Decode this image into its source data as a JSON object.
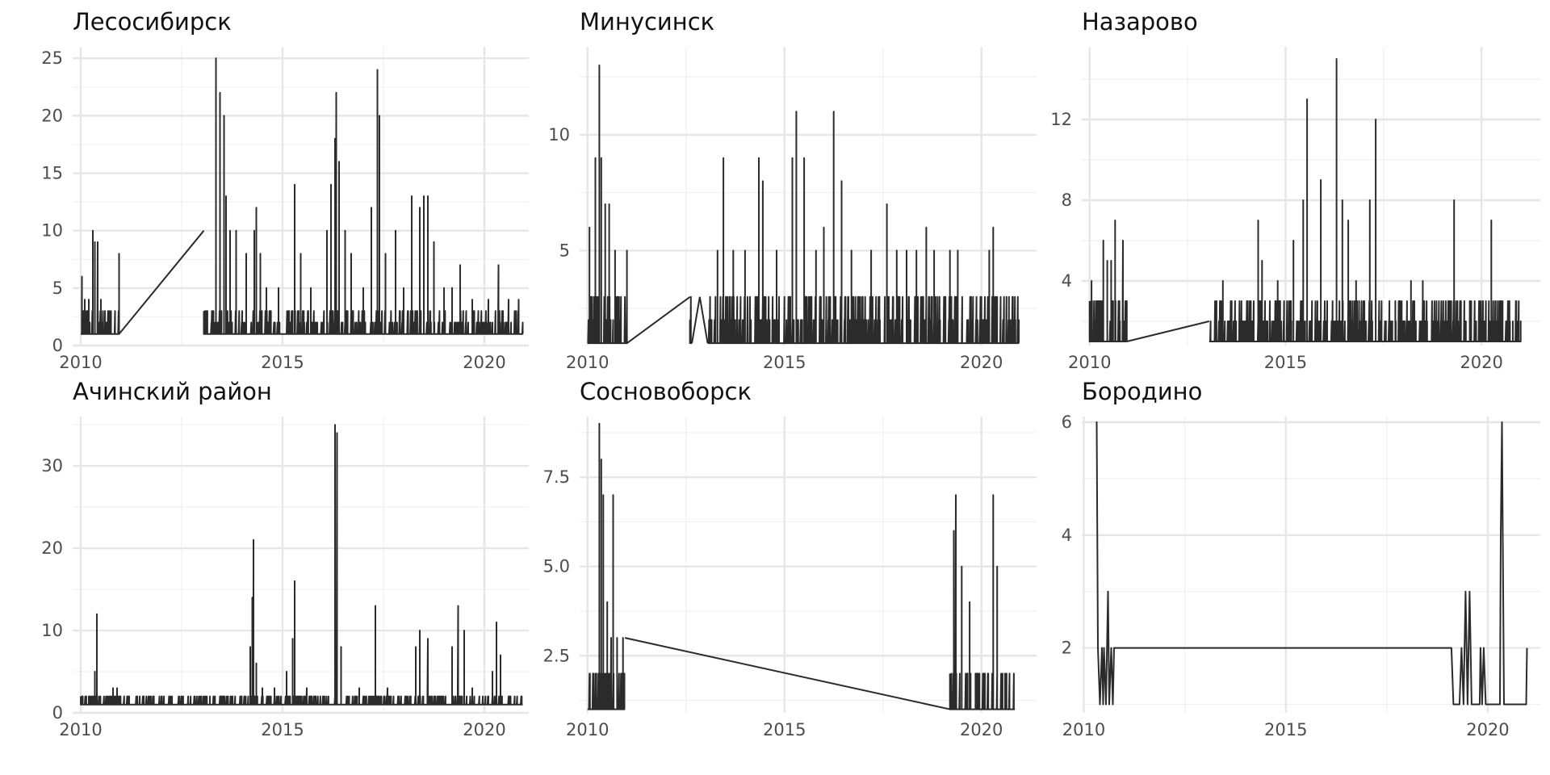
{
  "chart_data": [
    {
      "type": "line",
      "title": "Лесосибирск",
      "xlim": [
        2009.8,
        2021.1
      ],
      "ylim": [
        0,
        26
      ],
      "xticks": [
        2010,
        2015,
        2020
      ],
      "xtick_labels": [
        "2010",
        "2015",
        "2020"
      ],
      "yticks": [
        0,
        5,
        10,
        15,
        20,
        25
      ],
      "ytick_labels": [
        "0",
        "5",
        "10",
        "15",
        "20",
        "25"
      ],
      "grid": true,
      "series": [
        {
          "style": "spiky",
          "baseline": 1,
          "segments": [
            [
              2010.0,
              2010.95
            ],
            [
              2013.05,
              2020.95
            ]
          ],
          "gap_lines": [
            [
              2010.95,
              1,
              2013.05,
              10
            ]
          ],
          "spikes": [
            [
              2010.03,
              6
            ],
            [
              2010.1,
              4
            ],
            [
              2010.2,
              4
            ],
            [
              2010.3,
              10
            ],
            [
              2010.35,
              9
            ],
            [
              2010.42,
              9
            ],
            [
              2010.5,
              4
            ],
            [
              2010.6,
              3
            ],
            [
              2010.75,
              3
            ],
            [
              2010.95,
              8
            ],
            [
              2013.35,
              25
            ],
            [
              2013.45,
              22
            ],
            [
              2013.55,
              20
            ],
            [
              2013.6,
              13
            ],
            [
              2013.7,
              10
            ],
            [
              2013.85,
              10
            ],
            [
              2014.1,
              8
            ],
            [
              2014.3,
              10
            ],
            [
              2014.35,
              12
            ],
            [
              2014.45,
              8
            ],
            [
              2014.6,
              5
            ],
            [
              2014.9,
              5
            ],
            [
              2015.3,
              14
            ],
            [
              2015.45,
              8
            ],
            [
              2015.7,
              5
            ],
            [
              2016.1,
              10
            ],
            [
              2016.2,
              14
            ],
            [
              2016.3,
              18
            ],
            [
              2016.33,
              22
            ],
            [
              2016.4,
              16
            ],
            [
              2016.55,
              10
            ],
            [
              2016.7,
              8
            ],
            [
              2017.0,
              5
            ],
            [
              2017.2,
              12
            ],
            [
              2017.35,
              24
            ],
            [
              2017.4,
              20
            ],
            [
              2017.55,
              8
            ],
            [
              2017.8,
              10
            ],
            [
              2018.0,
              5
            ],
            [
              2018.2,
              13
            ],
            [
              2018.4,
              12
            ],
            [
              2018.5,
              13
            ],
            [
              2018.6,
              13
            ],
            [
              2018.75,
              9
            ],
            [
              2019.0,
              5
            ],
            [
              2019.2,
              5
            ],
            [
              2019.4,
              7
            ],
            [
              2019.7,
              4
            ],
            [
              2020.1,
              4
            ],
            [
              2020.35,
              7
            ],
            [
              2020.6,
              4
            ],
            [
              2020.85,
              4
            ]
          ],
          "noise_max": 3
        }
      ]
    },
    {
      "type": "line",
      "title": "Минусинск",
      "xlim": [
        2009.8,
        2021.4
      ],
      "ylim": [
        0.9,
        13.8
      ],
      "xticks": [
        2010,
        2015,
        2020
      ],
      "xtick_labels": [
        "2010",
        "2015",
        "2020"
      ],
      "yticks": [
        5,
        10
      ],
      "ytick_labels": [
        "5",
        "10"
      ],
      "grid": true,
      "series": [
        {
          "style": "spiky",
          "baseline": 1,
          "segments": [
            [
              2010.0,
              2011.0
            ],
            [
              2012.6,
              2012.65
            ],
            [
              2013.05,
              2020.95
            ]
          ],
          "gap_lines": [
            [
              2011.0,
              1,
              2012.6,
              3
            ],
            [
              2012.65,
              1,
              2012.85,
              3
            ],
            [
              2012.85,
              3,
              2013.05,
              1
            ]
          ],
          "spikes": [
            [
              2010.05,
              6
            ],
            [
              2010.2,
              9
            ],
            [
              2010.3,
              13
            ],
            [
              2010.35,
              9
            ],
            [
              2010.45,
              7
            ],
            [
              2010.55,
              7
            ],
            [
              2010.7,
              5
            ],
            [
              2011.0,
              5
            ],
            [
              2013.3,
              5
            ],
            [
              2013.45,
              9
            ],
            [
              2013.7,
              5
            ],
            [
              2014.0,
              5
            ],
            [
              2014.35,
              9
            ],
            [
              2014.45,
              8
            ],
            [
              2014.8,
              5
            ],
            [
              2015.2,
              9
            ],
            [
              2015.3,
              11
            ],
            [
              2015.5,
              9
            ],
            [
              2015.8,
              5
            ],
            [
              2016.0,
              6
            ],
            [
              2016.25,
              11
            ],
            [
              2016.45,
              8
            ],
            [
              2016.7,
              5
            ],
            [
              2017.2,
              5
            ],
            [
              2017.6,
              7
            ],
            [
              2017.85,
              5
            ],
            [
              2018.1,
              5
            ],
            [
              2018.35,
              5
            ],
            [
              2018.6,
              6
            ],
            [
              2018.8,
              5
            ],
            [
              2019.2,
              5
            ],
            [
              2019.4,
              5
            ],
            [
              2020.0,
              3
            ],
            [
              2020.2,
              5
            ],
            [
              2020.3,
              6
            ],
            [
              2020.7,
              3
            ]
          ],
          "noise_max": 3
        }
      ]
    },
    {
      "type": "line",
      "title": "Назарово",
      "xlim": [
        2009.8,
        2021.5
      ],
      "ylim": [
        0.8,
        15.6
      ],
      "xticks": [
        2010,
        2015,
        2020
      ],
      "xtick_labels": [
        "2010",
        "2015",
        "2020"
      ],
      "yticks": [
        4,
        8,
        12
      ],
      "ytick_labels": [
        "4",
        "8",
        "12"
      ],
      "grid": true,
      "series": [
        {
          "style": "spiky",
          "baseline": 1,
          "segments": [
            [
              2010.0,
              2010.95
            ],
            [
              2013.05,
              2021.0
            ]
          ],
          "gap_lines": [
            [
              2010.95,
              1,
              2013.05,
              2
            ]
          ],
          "spikes": [
            [
              2010.05,
              4
            ],
            [
              2010.2,
              3
            ],
            [
              2010.35,
              6
            ],
            [
              2010.45,
              5
            ],
            [
              2010.55,
              5
            ],
            [
              2010.65,
              7
            ],
            [
              2010.85,
              6
            ],
            [
              2013.4,
              4
            ],
            [
              2014.3,
              7
            ],
            [
              2014.4,
              5
            ],
            [
              2014.8,
              4
            ],
            [
              2015.2,
              6
            ],
            [
              2015.45,
              8
            ],
            [
              2015.55,
              13
            ],
            [
              2015.9,
              9
            ],
            [
              2016.3,
              15
            ],
            [
              2016.45,
              8
            ],
            [
              2016.6,
              7
            ],
            [
              2016.8,
              4
            ],
            [
              2017.15,
              8
            ],
            [
              2017.3,
              12
            ],
            [
              2017.8,
              3
            ],
            [
              2018.2,
              4
            ],
            [
              2018.5,
              4
            ],
            [
              2018.8,
              3
            ],
            [
              2019.3,
              8
            ],
            [
              2019.7,
              3
            ],
            [
              2020.25,
              7
            ],
            [
              2020.4,
              3
            ],
            [
              2020.8,
              2
            ],
            [
              2021.0,
              2
            ]
          ],
          "noise_max": 3
        }
      ]
    },
    {
      "type": "line",
      "title": "Ачинский район",
      "xlim": [
        2009.8,
        2021.1
      ],
      "ylim": [
        0,
        36
      ],
      "xticks": [
        2010,
        2015,
        2020
      ],
      "xtick_labels": [
        "2010",
        "2015",
        "2020"
      ],
      "yticks": [
        0,
        10,
        20,
        30
      ],
      "ytick_labels": [
        "0",
        "10",
        "20",
        "30"
      ],
      "grid": true,
      "series": [
        {
          "style": "spiky",
          "baseline": 1,
          "segments": [
            [
              2010.0,
              2020.95
            ]
          ],
          "gap_lines": [],
          "spikes": [
            [
              2010.05,
              2
            ],
            [
              2010.2,
              2
            ],
            [
              2010.35,
              5
            ],
            [
              2010.4,
              12
            ],
            [
              2010.7,
              2
            ],
            [
              2010.8,
              3
            ],
            [
              2010.9,
              3
            ],
            [
              2013.2,
              2
            ],
            [
              2013.5,
              2
            ],
            [
              2014.2,
              8
            ],
            [
              2014.25,
              14
            ],
            [
              2014.28,
              21
            ],
            [
              2014.35,
              6
            ],
            [
              2014.5,
              3
            ],
            [
              2014.8,
              3
            ],
            [
              2015.1,
              5
            ],
            [
              2015.25,
              9
            ],
            [
              2015.3,
              16
            ],
            [
              2015.6,
              3
            ],
            [
              2016.3,
              35
            ],
            [
              2016.35,
              34
            ],
            [
              2016.45,
              8
            ],
            [
              2016.9,
              3
            ],
            [
              2017.3,
              13
            ],
            [
              2017.6,
              3
            ],
            [
              2018.3,
              8
            ],
            [
              2018.4,
              10
            ],
            [
              2018.6,
              9
            ],
            [
              2019.2,
              8
            ],
            [
              2019.35,
              13
            ],
            [
              2019.5,
              10
            ],
            [
              2019.7,
              3
            ],
            [
              2020.2,
              5
            ],
            [
              2020.3,
              11
            ],
            [
              2020.4,
              7
            ]
          ],
          "noise_max": 2
        }
      ]
    },
    {
      "type": "line",
      "title": "Сосновоборск",
      "xlim": [
        2009.8,
        2021.4
      ],
      "ylim": [
        0.9,
        9.2
      ],
      "xticks": [
        2010,
        2015,
        2020
      ],
      "xtick_labels": [
        "2010",
        "2015",
        "2020"
      ],
      "yticks": [
        2.5,
        5.0,
        7.5
      ],
      "ytick_labels": [
        "2.5",
        "5.0",
        "7.5"
      ],
      "grid": true,
      "series": [
        {
          "style": "spiky",
          "baseline": 1,
          "segments": [
            [
              2010.0,
              2010.95
            ],
            [
              2019.2,
              2020.85
            ]
          ],
          "gap_lines": [
            [
              2010.95,
              3,
              2019.2,
              1
            ]
          ],
          "spikes": [
            [
              2010.05,
              2
            ],
            [
              2010.15,
              2
            ],
            [
              2010.3,
              9
            ],
            [
              2010.35,
              8
            ],
            [
              2010.4,
              7
            ],
            [
              2010.5,
              4
            ],
            [
              2010.6,
              3
            ],
            [
              2010.65,
              7
            ],
            [
              2010.75,
              3
            ],
            [
              2010.9,
              3
            ],
            [
              2019.3,
              6
            ],
            [
              2019.35,
              7
            ],
            [
              2019.5,
              5
            ],
            [
              2019.7,
              4
            ],
            [
              2019.85,
              2
            ],
            [
              2020.3,
              7
            ],
            [
              2020.4,
              5
            ],
            [
              2020.6,
              2
            ]
          ],
          "noise_max": 2
        }
      ]
    },
    {
      "type": "line",
      "title": "Бородино",
      "xlim": [
        2009.95,
        2021.3
      ],
      "ylim": [
        0.85,
        6.1
      ],
      "xticks": [
        2010,
        2015,
        2020
      ],
      "xtick_labels": [
        "2010",
        "2015",
        "2020"
      ],
      "yticks": [
        2,
        4,
        6
      ],
      "ytick_labels": [
        "2",
        "4",
        "6"
      ],
      "grid": true,
      "series": [
        {
          "style": "steps",
          "points": [
            [
              2010.3,
              6
            ],
            [
              2010.32,
              6
            ],
            [
              2010.35,
              2
            ],
            [
              2010.4,
              1
            ],
            [
              2010.45,
              2
            ],
            [
              2010.48,
              1
            ],
            [
              2010.5,
              2
            ],
            [
              2010.55,
              1
            ],
            [
              2010.6,
              3
            ],
            [
              2010.63,
              1
            ],
            [
              2010.68,
              2
            ],
            [
              2010.72,
              1
            ],
            [
              2010.75,
              2
            ],
            [
              2019.1,
              2
            ],
            [
              2019.15,
              1
            ],
            [
              2019.3,
              1
            ],
            [
              2019.35,
              2
            ],
            [
              2019.4,
              1
            ],
            [
              2019.45,
              3
            ],
            [
              2019.5,
              1
            ],
            [
              2019.55,
              3
            ],
            [
              2019.6,
              1
            ],
            [
              2019.8,
              1
            ],
            [
              2019.82,
              2
            ],
            [
              2019.86,
              1
            ],
            [
              2019.9,
              2
            ],
            [
              2019.95,
              1
            ],
            [
              2020.3,
              1
            ],
            [
              2020.32,
              4
            ],
            [
              2020.35,
              6
            ],
            [
              2020.4,
              1
            ],
            [
              2020.95,
              1
            ],
            [
              2020.97,
              2
            ]
          ]
        }
      ]
    }
  ]
}
